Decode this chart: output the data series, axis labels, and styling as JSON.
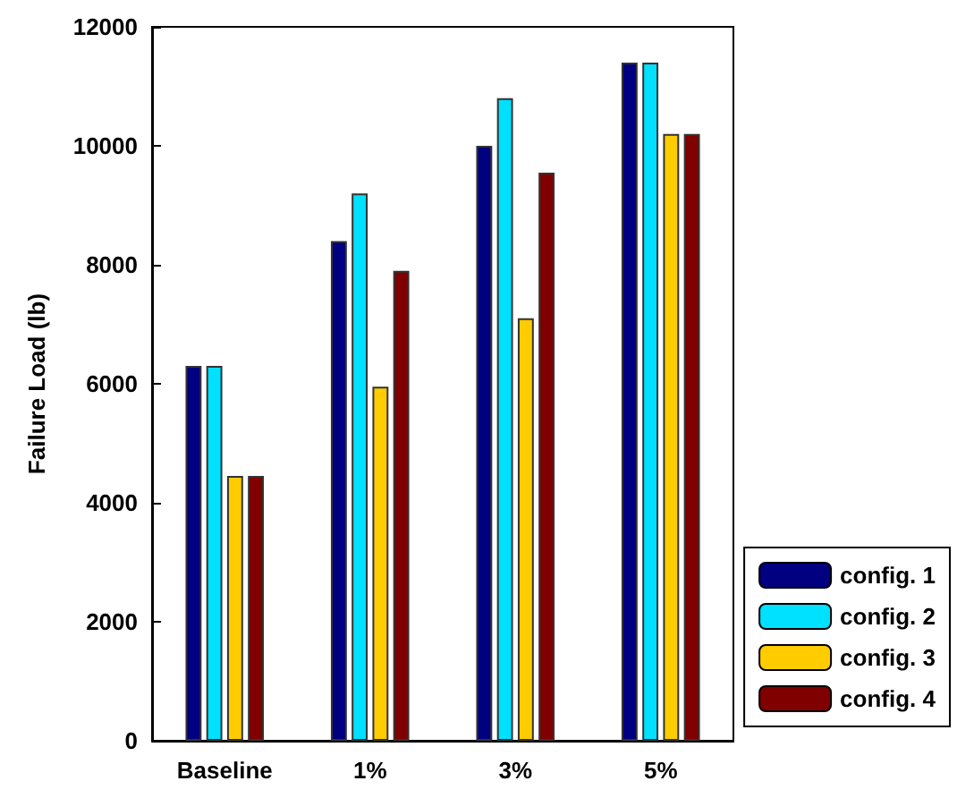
{
  "chart_data": {
    "type": "bar",
    "ylabel": "Failure Load (lb)",
    "categories": [
      "Baseline",
      "1%",
      "3%",
      "5%"
    ],
    "series": [
      {
        "name": "config. 1",
        "color": "#000080",
        "values": [
          6300,
          8400,
          10000,
          11400
        ]
      },
      {
        "name": "config. 2",
        "color": "#00e0ff",
        "values": [
          6300,
          9200,
          10800,
          11400
        ]
      },
      {
        "name": "config. 3",
        "color": "#ffcc00",
        "values": [
          4450,
          5950,
          7100,
          10200
        ]
      },
      {
        "name": "config. 4",
        "color": "#800000",
        "values": [
          4450,
          7900,
          9550,
          10200
        ]
      }
    ],
    "ylim": [
      0,
      12000
    ],
    "yticks": [
      0,
      2000,
      4000,
      6000,
      8000,
      10000,
      12000
    ],
    "grid": false,
    "legend": "bottom right"
  }
}
